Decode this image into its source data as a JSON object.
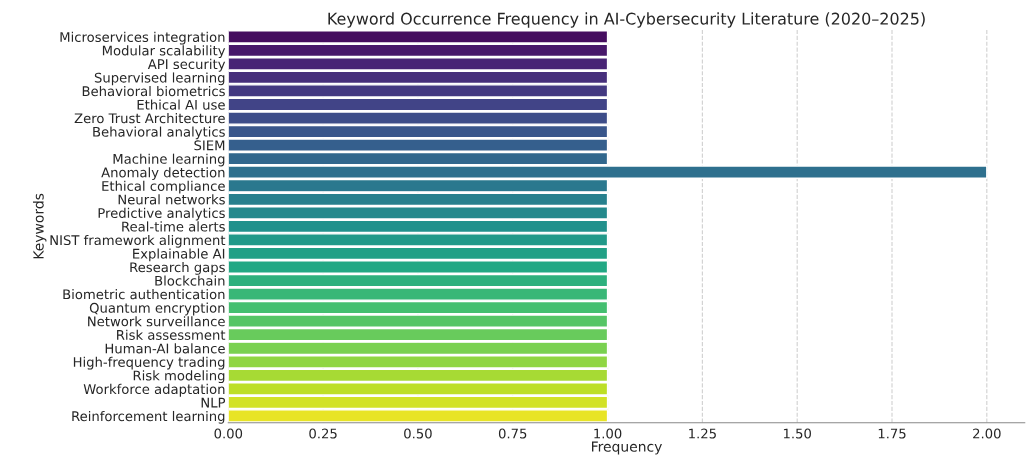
{
  "chart_data": {
    "type": "bar",
    "orientation": "horizontal",
    "title": "Keyword Occurrence Frequency in AI-Cybersecurity Literature (2020–2025)",
    "xlabel": "Frequency",
    "ylabel": "Keywords",
    "categories": [
      "Microservices integration",
      "Modular scalability",
      "API security",
      "Supervised learning",
      "Behavioral biometrics",
      "Ethical AI use",
      "Zero Trust Architecture",
      "Behavioral analytics",
      "SIEM",
      "Machine learning",
      "Anomaly detection",
      "Ethical compliance",
      "Neural networks",
      "Predictive analytics",
      "Real-time alerts",
      "NIST framework alignment",
      "Explainable AI",
      "Research gaps",
      "Blockchain",
      "Biometric authentication",
      "Quantum encryption",
      "Network surveillance",
      "Risk assessment",
      "Human-AI balance",
      "High-frequency trading",
      "Risk modeling",
      "Workforce adaptation",
      "NLP",
      "Reinforcement learning"
    ],
    "values": [
      1,
      1,
      1,
      1,
      1,
      1,
      1,
      1,
      1,
      1,
      2,
      1,
      1,
      1,
      1,
      1,
      1,
      1,
      1,
      1,
      1,
      1,
      1,
      1,
      1,
      1,
      1,
      1,
      1
    ],
    "colors": [
      "#450d5f",
      "#47186a",
      "#482475",
      "#462f7b",
      "#433981",
      "#414487",
      "#3d4d89",
      "#39568b",
      "#355f8d",
      "#31678d",
      "#2e708e",
      "#2a788e",
      "#27808d",
      "#24898c",
      "#21918c",
      "#219989",
      "#22a086",
      "#22a884",
      "#2db07d",
      "#39b777",
      "#44bf70",
      "#56c566",
      "#68cb5c",
      "#7ad151",
      "#90d643",
      "#a7da34",
      "#bddf26",
      "#d2e226",
      "#e8e425"
    ],
    "xlim": [
      0,
      2.1
    ],
    "xticks": [
      {
        "value": 0,
        "label": "0.00"
      },
      {
        "value": 0.25,
        "label": "0.25"
      },
      {
        "value": 0.5,
        "label": "0.50"
      },
      {
        "value": 0.75,
        "label": "0.75"
      },
      {
        "value": 1,
        "label": "1.00"
      },
      {
        "value": 1.25,
        "label": "1.25"
      },
      {
        "value": 1.5,
        "label": "1.50"
      },
      {
        "value": 1.75,
        "label": "1.75"
      },
      {
        "value": 2,
        "label": "2.00"
      }
    ],
    "grid": "x",
    "legend": false
  }
}
